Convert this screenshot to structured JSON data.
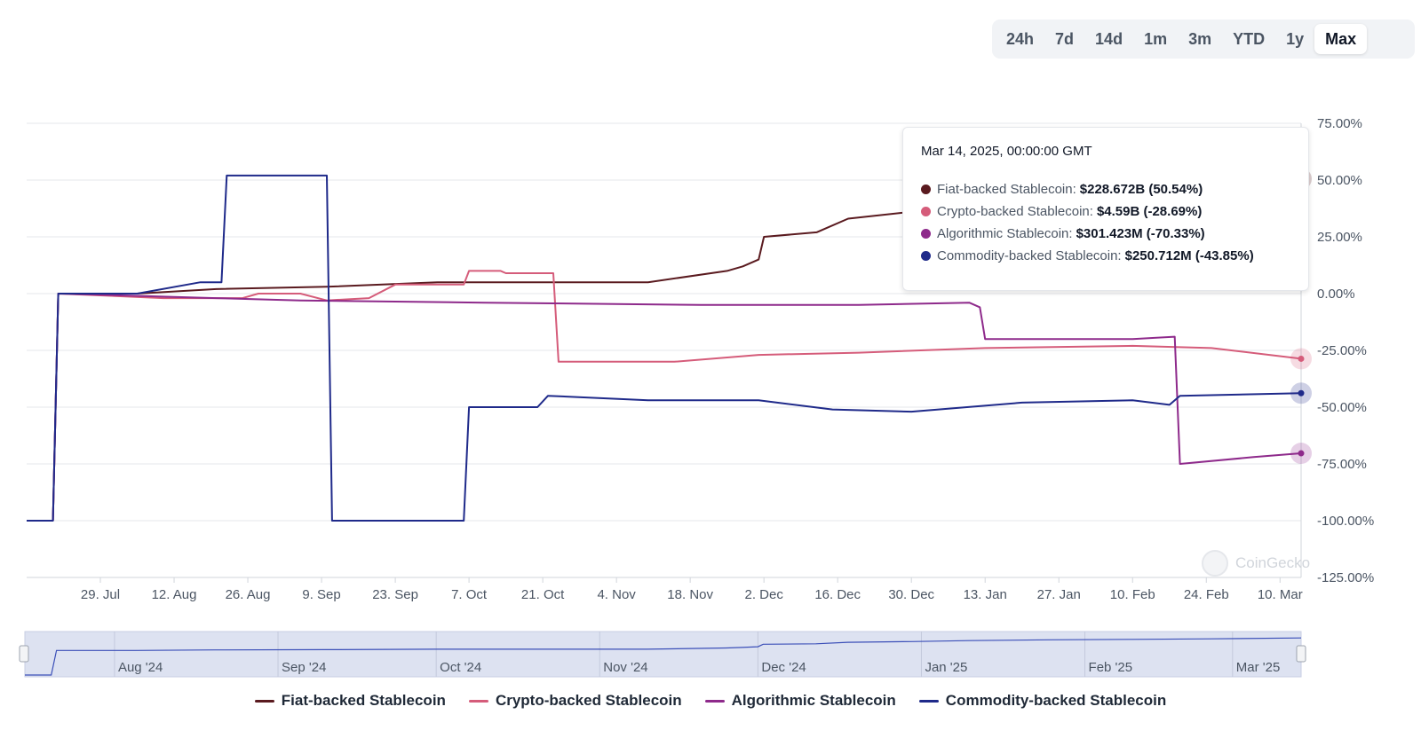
{
  "range_selector": {
    "options": [
      "24h",
      "7d",
      "14d",
      "1m",
      "3m",
      "YTD",
      "1y",
      "Max"
    ],
    "active": "Max"
  },
  "chart_data": {
    "type": "line",
    "x_start": "2024-07-15",
    "x_end": "2025-03-14",
    "xlabel": "",
    "ylabel": "",
    "ylim": [
      -125,
      75
    ],
    "y_ticks": [
      "75.00%",
      "50.00%",
      "25.00%",
      "0.00%",
      "-25.00%",
      "-50.00%",
      "-75.00%",
      "-100.00%",
      "-125.00%"
    ],
    "y_tick_values": [
      75,
      50,
      25,
      0,
      -25,
      -50,
      -75,
      -100,
      -125
    ],
    "x_ticks": [
      "29. Jul",
      "12. Aug",
      "26. Aug",
      "9. Sep",
      "23. Sep",
      "7. Oct",
      "21. Oct",
      "4. Nov",
      "18. Nov",
      "2. Dec",
      "16. Dec",
      "30. Dec",
      "13. Jan",
      "27. Jan",
      "10. Feb",
      "24. Feb",
      "10. Mar"
    ],
    "x_tick_dates": [
      "2024-07-29",
      "2024-08-12",
      "2024-08-26",
      "2024-09-09",
      "2024-09-23",
      "2024-10-07",
      "2024-10-21",
      "2024-11-04",
      "2024-11-18",
      "2024-12-02",
      "2024-12-16",
      "2024-12-30",
      "2025-01-13",
      "2025-01-27",
      "2025-02-10",
      "2025-02-24",
      "2025-03-10"
    ],
    "grid": true,
    "legend_position": "bottom-center",
    "series": [
      {
        "name": "Fiat-backed Stablecoin",
        "color": "#5a1a1f",
        "points": [
          [
            "2024-07-20",
            -100
          ],
          [
            "2024-07-21",
            0
          ],
          [
            "2024-08-05",
            0
          ],
          [
            "2024-08-20",
            2
          ],
          [
            "2024-09-10",
            3
          ],
          [
            "2024-10-01",
            5
          ],
          [
            "2024-10-25",
            5
          ],
          [
            "2024-11-10",
            5
          ],
          [
            "2024-11-25",
            10
          ],
          [
            "2024-11-28",
            12
          ],
          [
            "2024-12-01",
            15
          ],
          [
            "2024-12-02",
            25
          ],
          [
            "2024-12-12",
            27
          ],
          [
            "2024-12-18",
            33
          ],
          [
            "2024-12-30",
            36
          ],
          [
            "2025-01-10",
            40
          ],
          [
            "2025-01-25",
            43
          ],
          [
            "2025-02-10",
            45
          ],
          [
            "2025-02-25",
            47
          ],
          [
            "2025-03-14",
            50.54
          ]
        ]
      },
      {
        "name": "Crypto-backed Stablecoin",
        "color": "#d55c7a",
        "points": [
          [
            "2024-07-20",
            -100
          ],
          [
            "2024-07-21",
            0
          ],
          [
            "2024-08-10",
            -2
          ],
          [
            "2024-08-25",
            -2
          ],
          [
            "2024-08-28",
            0
          ],
          [
            "2024-09-05",
            0
          ],
          [
            "2024-09-10",
            -3
          ],
          [
            "2024-09-18",
            -2
          ],
          [
            "2024-09-23",
            4
          ],
          [
            "2024-10-06",
            4
          ],
          [
            "2024-10-07",
            10
          ],
          [
            "2024-10-13",
            10
          ],
          [
            "2024-10-14",
            9
          ],
          [
            "2024-10-23",
            9
          ],
          [
            "2024-10-24",
            -30
          ],
          [
            "2024-11-15",
            -30
          ],
          [
            "2024-12-01",
            -27
          ],
          [
            "2024-12-20",
            -26
          ],
          [
            "2025-01-13",
            -24
          ],
          [
            "2025-02-10",
            -23
          ],
          [
            "2025-02-25",
            -24
          ],
          [
            "2025-03-14",
            -28.69
          ]
        ]
      },
      {
        "name": "Algorithmic Stablecoin",
        "color": "#8e2a8b",
        "points": [
          [
            "2024-07-20",
            -100
          ],
          [
            "2024-07-21",
            0
          ],
          [
            "2024-08-20",
            -2
          ],
          [
            "2024-09-05",
            -3
          ],
          [
            "2024-10-10",
            -4
          ],
          [
            "2024-11-20",
            -5
          ],
          [
            "2024-12-20",
            -5
          ],
          [
            "2025-01-10",
            -4
          ],
          [
            "2025-01-12",
            -6
          ],
          [
            "2025-01-13",
            -20
          ],
          [
            "2025-02-10",
            -20
          ],
          [
            "2025-02-18",
            -19
          ],
          [
            "2025-02-19",
            -75
          ],
          [
            "2025-03-05",
            -72
          ],
          [
            "2025-03-14",
            -70.33
          ]
        ]
      },
      {
        "name": "Commodity-backed Stablecoin",
        "color": "#1f2a8a",
        "points": [
          [
            "2024-07-15",
            -100
          ],
          [
            "2024-07-20",
            -100
          ],
          [
            "2024-07-21",
            0
          ],
          [
            "2024-08-05",
            0
          ],
          [
            "2024-08-17",
            5
          ],
          [
            "2024-08-21",
            5
          ],
          [
            "2024-08-22",
            52
          ],
          [
            "2024-09-05",
            52
          ],
          [
            "2024-09-10",
            52
          ],
          [
            "2024-09-11",
            -100
          ],
          [
            "2024-10-06",
            -100
          ],
          [
            "2024-10-07",
            -50
          ],
          [
            "2024-10-20",
            -50
          ],
          [
            "2024-10-22",
            -45
          ],
          [
            "2024-11-10",
            -47
          ],
          [
            "2024-12-01",
            -47
          ],
          [
            "2024-12-15",
            -51
          ],
          [
            "2024-12-30",
            -52
          ],
          [
            "2025-01-20",
            -48
          ],
          [
            "2025-02-10",
            -47
          ],
          [
            "2025-02-17",
            -49
          ],
          [
            "2025-02-19",
            -45
          ],
          [
            "2025-03-14",
            -43.85
          ]
        ]
      }
    ],
    "navigator": {
      "labels": [
        "Aug '24",
        "Sep '24",
        "Oct '24",
        "Nov '24",
        "Dec '24",
        "Jan '25",
        "Feb '25",
        "Mar '25"
      ],
      "label_dates": [
        "2024-08-01",
        "2024-09-01",
        "2024-10-01",
        "2024-11-01",
        "2024-12-01",
        "2025-01-01",
        "2025-02-01",
        "2025-03-01"
      ]
    }
  },
  "tooltip": {
    "date": "Mar 14, 2025, 00:00:00 GMT",
    "rows": [
      {
        "name": "Fiat-backed Stablecoin:",
        "value": "$228.672B (50.54%)",
        "color": "#5a1a1f"
      },
      {
        "name": "Crypto-backed Stablecoin:",
        "value": "$4.59B (-28.69%)",
        "color": "#d55c7a"
      },
      {
        "name": "Algorithmic Stablecoin:",
        "value": "$301.423M (-70.33%)",
        "color": "#8e2a8b"
      },
      {
        "name": "Commodity-backed Stablecoin:",
        "value": "$250.712M (-43.85%)",
        "color": "#1f2a8a"
      }
    ]
  },
  "legend": [
    {
      "label": "Fiat-backed Stablecoin",
      "color": "#5a1a1f"
    },
    {
      "label": "Crypto-backed Stablecoin",
      "color": "#d55c7a"
    },
    {
      "label": "Algorithmic Stablecoin",
      "color": "#8e2a8b"
    },
    {
      "label": "Commodity-backed Stablecoin",
      "color": "#1f2a8a"
    }
  ],
  "watermark": "CoinGecko"
}
